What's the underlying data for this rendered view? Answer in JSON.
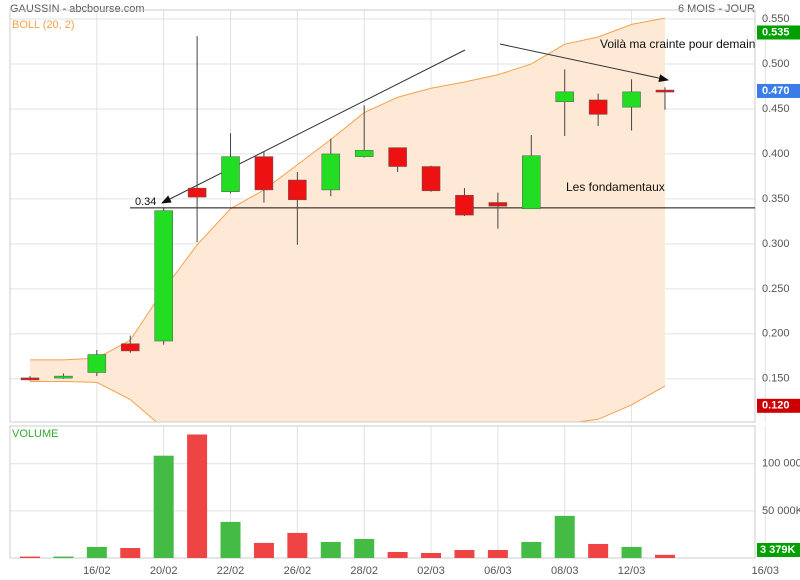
{
  "header": {
    "title": "GAUSSIN - abcbourse.com",
    "period": "6 MOIS - JOUR"
  },
  "chart_data": [
    {
      "type": "candlestick",
      "indicator": "BOLL (20, 2)",
      "indicator_color": "#f5a04a",
      "band_fill": "#fde9d5",
      "up_color": "#22dd22",
      "down_color": "#ee1111",
      "open": [
        0.151,
        0.151,
        0.157,
        0.189,
        0.192,
        0.362,
        0.358,
        0.397,
        0.371,
        0.36,
        0.397,
        0.407,
        0.386,
        0.354,
        0.346,
        0.339,
        0.458,
        0.46,
        0.452,
        0.471
      ],
      "high": [
        0.153,
        0.156,
        0.182,
        0.198,
        0.34,
        0.531,
        0.423,
        0.403,
        0.38,
        0.417,
        0.454,
        0.407,
        0.387,
        0.362,
        0.357,
        0.421,
        0.494,
        0.467,
        0.483,
        0.474
      ],
      "low": [
        0.148,
        0.15,
        0.153,
        0.179,
        0.188,
        0.302,
        0.356,
        0.346,
        0.299,
        0.353,
        0.396,
        0.38,
        0.358,
        0.331,
        0.317,
        0.339,
        0.42,
        0.431,
        0.426,
        0.449
      ],
      "close": [
        0.15,
        0.153,
        0.177,
        0.181,
        0.337,
        0.352,
        0.397,
        0.36,
        0.349,
        0.4,
        0.404,
        0.386,
        0.359,
        0.332,
        0.342,
        0.398,
        0.469,
        0.444,
        0.469,
        0.47
      ],
      "upper": [
        0.171,
        0.171,
        0.173,
        0.193,
        0.249,
        0.299,
        0.339,
        0.36,
        0.388,
        0.416,
        0.446,
        0.463,
        0.473,
        0.48,
        0.488,
        0.5,
        0.522,
        0.53,
        0.544,
        0.551
      ],
      "lower": [
        0.147,
        0.147,
        0.146,
        0.127,
        0.095,
        0.07,
        0.06,
        0.06,
        0.065,
        0.07,
        0.075,
        0.08,
        0.085,
        0.09,
        0.095,
        0.098,
        0.1,
        0.105,
        0.121,
        0.142
      ],
      "ylim": [
        0.102,
        0.56
      ],
      "yticks": [
        {
          "value": 0.15,
          "label": "0.150"
        },
        {
          "value": 0.2,
          "label": "0.200"
        },
        {
          "value": 0.25,
          "label": "0.250"
        },
        {
          "value": 0.3,
          "label": "0.300"
        },
        {
          "value": 0.35,
          "label": "0.350"
        },
        {
          "value": 0.4,
          "label": "0.400"
        },
        {
          "value": 0.45,
          "label": "0.450"
        },
        {
          "value": 0.5,
          "label": "0.500"
        },
        {
          "value": 0.55,
          "label": "0.550"
        }
      ],
      "badges": [
        {
          "value": 0.535,
          "label": "0.535",
          "color": "#00a000"
        },
        {
          "value": 0.47,
          "label": "0.470",
          "color": "#3b7de8"
        },
        {
          "value": 0.12,
          "label": "0.120",
          "color": "#cc0000"
        }
      ],
      "level": {
        "value": 0.34,
        "label": "0.34"
      },
      "annotations": [
        "Voilà ma crainte pour demain",
        "Les fondamentaux"
      ],
      "grid": true
    },
    {
      "type": "bar",
      "title": "VOLUME",
      "title_color": "#33aa33",
      "categories": [
        null,
        null,
        "16/02",
        null,
        "20/02",
        null,
        "22/02",
        null,
        "26/02",
        null,
        "28/02",
        null,
        "02/03",
        null,
        "06/03",
        null,
        "08/03",
        null,
        "12/03",
        null,
        null,
        null,
        "16/03"
      ],
      "values": [
        1500,
        1500,
        11700,
        10600,
        108500,
        131000,
        38300,
        16000,
        26600,
        17000,
        20200,
        6400,
        5300,
        8500,
        8500,
        17000,
        44700,
        14900,
        11700,
        3379,
        null,
        null,
        null
      ],
      "up_color": "#44bb44",
      "down_color": "#ee4444",
      "ylim": [
        0,
        140000
      ],
      "yticks": [
        {
          "value": 50000,
          "label": "50 000K"
        },
        {
          "value": 100000,
          "label": "100 000"
        }
      ],
      "last_label": "3 379K",
      "last_label_color": "#00a000",
      "grid": true
    }
  ]
}
